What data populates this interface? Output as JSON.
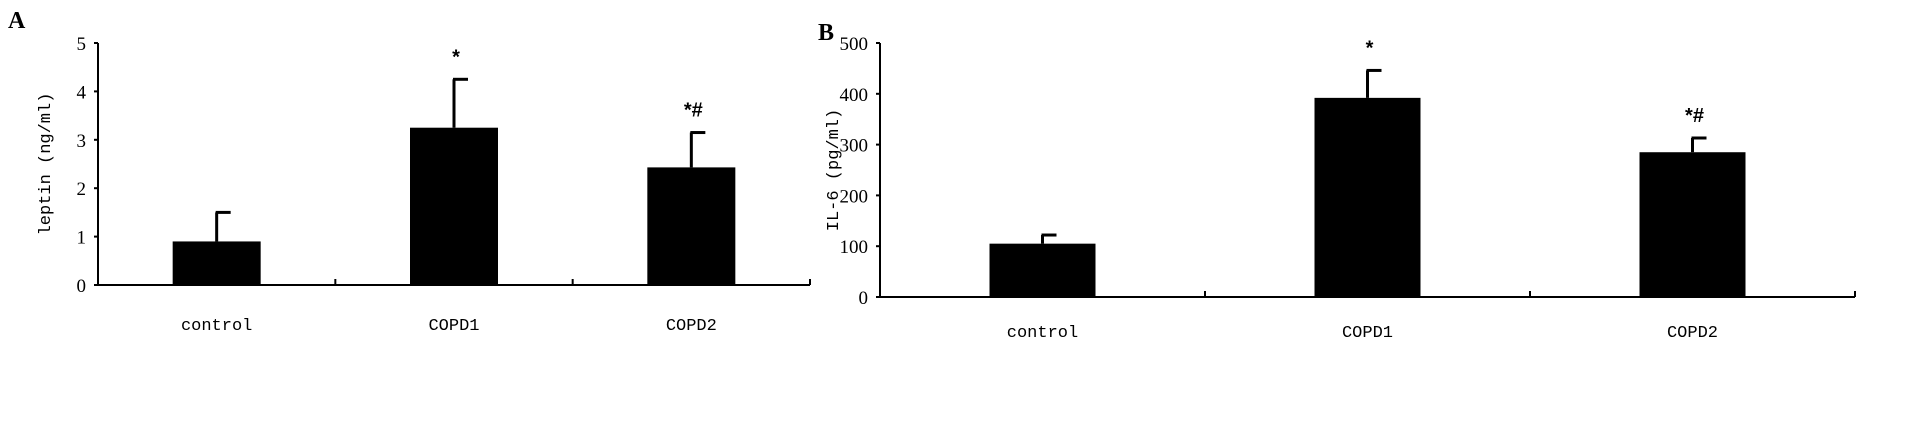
{
  "chart_data": [
    {
      "type": "bar",
      "panel_label": "A",
      "categories": [
        "control",
        "COPD1",
        "COPD2"
      ],
      "values": [
        0.9,
        3.25,
        2.43
      ],
      "error_upper": [
        1.5,
        4.25,
        3.15
      ],
      "annotations": [
        "",
        "*",
        "*#"
      ],
      "xlabel": "",
      "ylabel": "leptin (ng/ml)",
      "ylim": [
        0,
        5
      ],
      "yticks": [
        0,
        1,
        2,
        3,
        4,
        5
      ],
      "grid": false,
      "bar_color": "#000000"
    },
    {
      "type": "bar",
      "panel_label": "B",
      "categories": [
        "control",
        "COPD1",
        "COPD2"
      ],
      "values": [
        105,
        392,
        285
      ],
      "error_upper": [
        122,
        446,
        313
      ],
      "annotations": [
        "",
        "*",
        "*#"
      ],
      "xlabel": "",
      "ylabel": "IL-6 (pg/ml)",
      "ylim": [
        0,
        500
      ],
      "yticks": [
        0,
        100,
        200,
        300,
        400,
        500
      ],
      "grid": false,
      "bar_color": "#000000"
    }
  ]
}
